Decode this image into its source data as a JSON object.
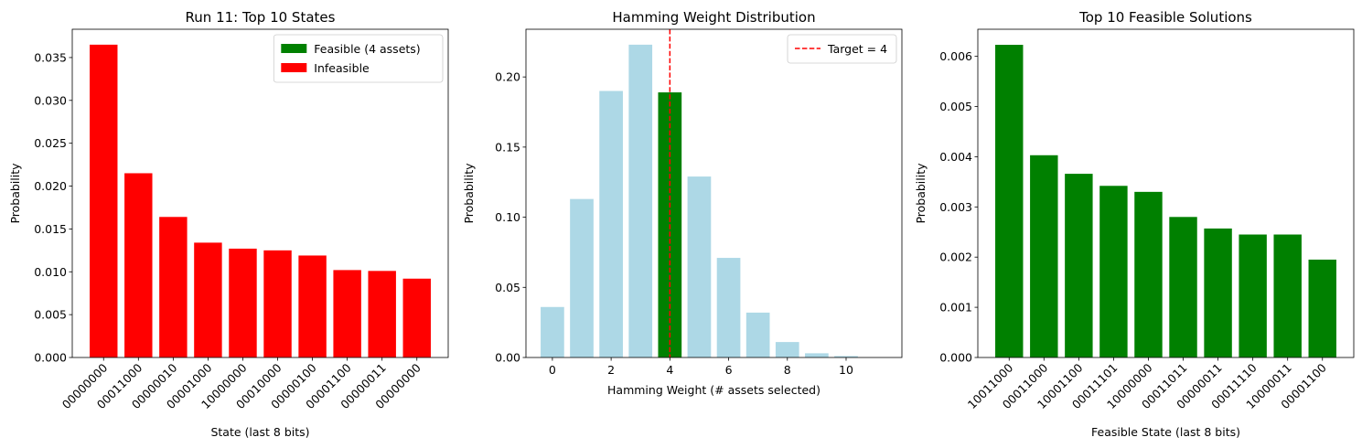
{
  "chart_data": [
    {
      "type": "bar",
      "title": "Run 11: Top 10 States",
      "xlabel": "State (last 8 bits)",
      "ylabel": "Probability",
      "ylim": [
        0,
        0.0383
      ],
      "yticks": [
        "0.000",
        "0.005",
        "0.010",
        "0.015",
        "0.020",
        "0.025",
        "0.030",
        "0.035"
      ],
      "categories": [
        "00000000",
        "00011000",
        "00000010",
        "00001000",
        "10000000",
        "00010000",
        "00000100",
        "00001100",
        "00000011",
        "00000000"
      ],
      "values": [
        0.0365,
        0.0215,
        0.0164,
        0.0134,
        0.0127,
        0.0125,
        0.0119,
        0.0102,
        0.0101,
        0.0092
      ],
      "bar_colors": [
        "#ff0000",
        "#ff0000",
        "#ff0000",
        "#ff0000",
        "#ff0000",
        "#ff0000",
        "#ff0000",
        "#ff0000",
        "#ff0000",
        "#ff0000"
      ],
      "legend": {
        "position": "upper right",
        "entries": [
          {
            "label": "Feasible (4 assets)",
            "color": "#008000",
            "kind": "patch"
          },
          {
            "label": "Infeasible",
            "color": "#ff0000",
            "kind": "patch"
          }
        ]
      }
    },
    {
      "type": "bar",
      "title": "Hamming Weight Distribution",
      "xlabel": "Hamming Weight (# assets selected)",
      "ylabel": "Probability",
      "xlim": [
        -0.9,
        11.9
      ],
      "ylim": [
        0,
        0.234
      ],
      "xticks": [
        "0",
        "2",
        "4",
        "6",
        "8",
        "10"
      ],
      "yticks": [
        "0.00",
        "0.05",
        "0.10",
        "0.15",
        "0.20"
      ],
      "x": [
        0,
        1,
        2,
        3,
        4,
        5,
        6,
        7,
        8,
        9,
        10,
        11
      ],
      "values": [
        0.036,
        0.113,
        0.19,
        0.223,
        0.189,
        0.129,
        0.071,
        0.032,
        0.011,
        0.003,
        0.001,
        0.0
      ],
      "bar_colors": [
        "#add8e6",
        "#add8e6",
        "#add8e6",
        "#add8e6",
        "#008000",
        "#add8e6",
        "#add8e6",
        "#add8e6",
        "#add8e6",
        "#add8e6",
        "#add8e6",
        "#add8e6"
      ],
      "vline": {
        "x": 4,
        "color": "#ff0000",
        "style": "dashed"
      },
      "legend": {
        "position": "upper right",
        "entries": [
          {
            "label": "Target = 4",
            "color": "#ff0000",
            "kind": "dashed-line"
          }
        ]
      }
    },
    {
      "type": "bar",
      "title": "Top 10 Feasible Solutions",
      "xlabel": "Feasible State (last 8 bits)",
      "ylabel": "Probability",
      "ylim": [
        0,
        0.00654
      ],
      "yticks": [
        "0.000",
        "0.001",
        "0.002",
        "0.003",
        "0.004",
        "0.005",
        "0.006"
      ],
      "categories": [
        "10011000",
        "00011000",
        "10001100",
        "00011101",
        "10000000",
        "00011011",
        "00000011",
        "00011110",
        "10000011",
        "00001100"
      ],
      "values": [
        0.00623,
        0.00403,
        0.00366,
        0.00342,
        0.0033,
        0.0028,
        0.00257,
        0.00245,
        0.00245,
        0.00195
      ],
      "bar_colors": [
        "#008000",
        "#008000",
        "#008000",
        "#008000",
        "#008000",
        "#008000",
        "#008000",
        "#008000",
        "#008000",
        "#008000"
      ]
    }
  ]
}
